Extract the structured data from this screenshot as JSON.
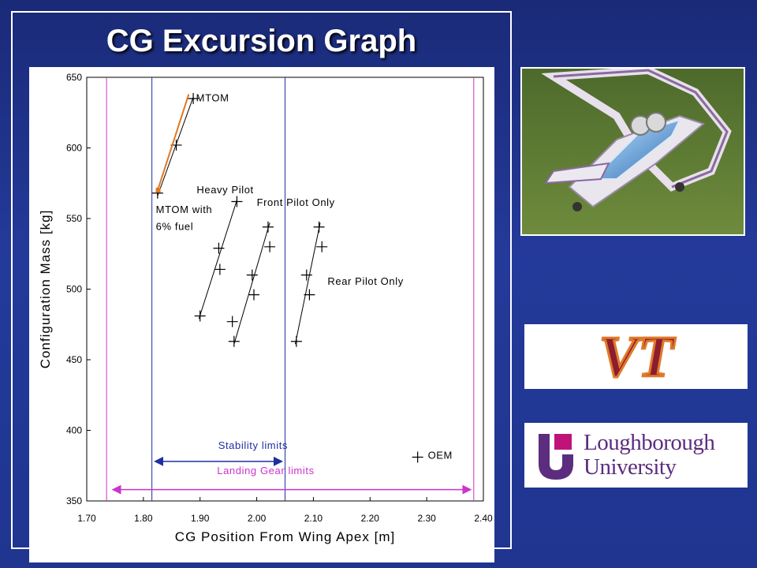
{
  "slide": {
    "title": "CG Excursion Graph"
  },
  "colors": {
    "background": "#1f3590",
    "stability_line": "#1f2fa0",
    "landing_gear_line": "#cc33cc",
    "mtom_fuel_line": "#e07820",
    "marker": "#000000"
  },
  "logos": {
    "vt": "VT",
    "loughborough": [
      "Loughborough",
      "University"
    ]
  },
  "chart_data": {
    "type": "scatter",
    "xlabel": "CG Position From Wing Apex [m]",
    "ylabel": "Configuration Mass [kg]",
    "xlim": [
      1.7,
      2.4
    ],
    "ylim": [
      350,
      650
    ],
    "xticks": [
      "1.70",
      "1.80",
      "1.90",
      "2.00",
      "2.10",
      "2.20",
      "2.30",
      "2.40"
    ],
    "yticks": [
      "350",
      "400",
      "450",
      "500",
      "550",
      "600",
      "650"
    ],
    "grid": false,
    "limits": [
      {
        "name": "Stability limits",
        "x_min": 1.815,
        "x_max": 2.05,
        "color": "#1f2fa0"
      },
      {
        "name": "Landing Gear limits",
        "x_min": 1.735,
        "x_max": 2.383,
        "color": "#cc33cc"
      }
    ],
    "series": [
      {
        "name": "MTOM",
        "points": [
          [
            1.825,
            568
          ],
          [
            1.858,
            602
          ],
          [
            1.888,
            635
          ]
        ],
        "line": [
          [
            1.825,
            566
          ],
          [
            1.888,
            636
          ]
        ]
      },
      {
        "name": "MTOM with 6% fuel",
        "points": [
          [
            1.826,
            570
          ]
        ],
        "line": [
          [
            1.826,
            571
          ],
          [
            1.88,
            638
          ]
        ],
        "color": "#e07820"
      },
      {
        "name": "Heavy Pilot",
        "points": [
          [
            1.9,
            481
          ],
          [
            1.935,
            514
          ],
          [
            1.933,
            529
          ],
          [
            1.965,
            562
          ]
        ],
        "line": [
          [
            1.898,
            479
          ],
          [
            1.965,
            563
          ]
        ]
      },
      {
        "name": "Front Pilot Only",
        "points": [
          [
            1.96,
            463
          ],
          [
            1.957,
            477
          ],
          [
            1.995,
            496
          ],
          [
            1.992,
            510
          ],
          [
            2.023,
            530
          ],
          [
            2.02,
            544
          ]
        ],
        "line": [
          [
            1.96,
            461
          ],
          [
            2.023,
            547
          ]
        ]
      },
      {
        "name": "Rear Pilot Only",
        "points": [
          [
            2.07,
            463
          ],
          [
            2.093,
            496
          ],
          [
            2.088,
            510
          ],
          [
            2.115,
            530
          ],
          [
            2.11,
            544
          ]
        ],
        "line": [
          [
            2.068,
            461
          ],
          [
            2.112,
            547
          ]
        ]
      },
      {
        "name": "OEM",
        "points": [
          [
            2.284,
            381
          ]
        ]
      }
    ],
    "annotations": [
      {
        "text": "MTOM",
        "x": 1.893,
        "y": 633
      },
      {
        "text": "Heavy Pilot",
        "x": 1.894,
        "y": 568
      },
      {
        "text": "Front Pilot Only",
        "x": 2.0,
        "y": 559
      },
      {
        "text": "MTOM with",
        "x": 1.822,
        "y": 554
      },
      {
        "text": "6% fuel",
        "x": 1.822,
        "y": 542
      },
      {
        "text": "Rear Pilot Only",
        "x": 2.125,
        "y": 503
      },
      {
        "text": "Stability limits",
        "x": 1.932,
        "y": 387
      },
      {
        "text": "Landing Gear limits",
        "x": 1.93,
        "y": 369
      },
      {
        "text": "OEM",
        "x": 2.302,
        "y": 380
      }
    ]
  }
}
